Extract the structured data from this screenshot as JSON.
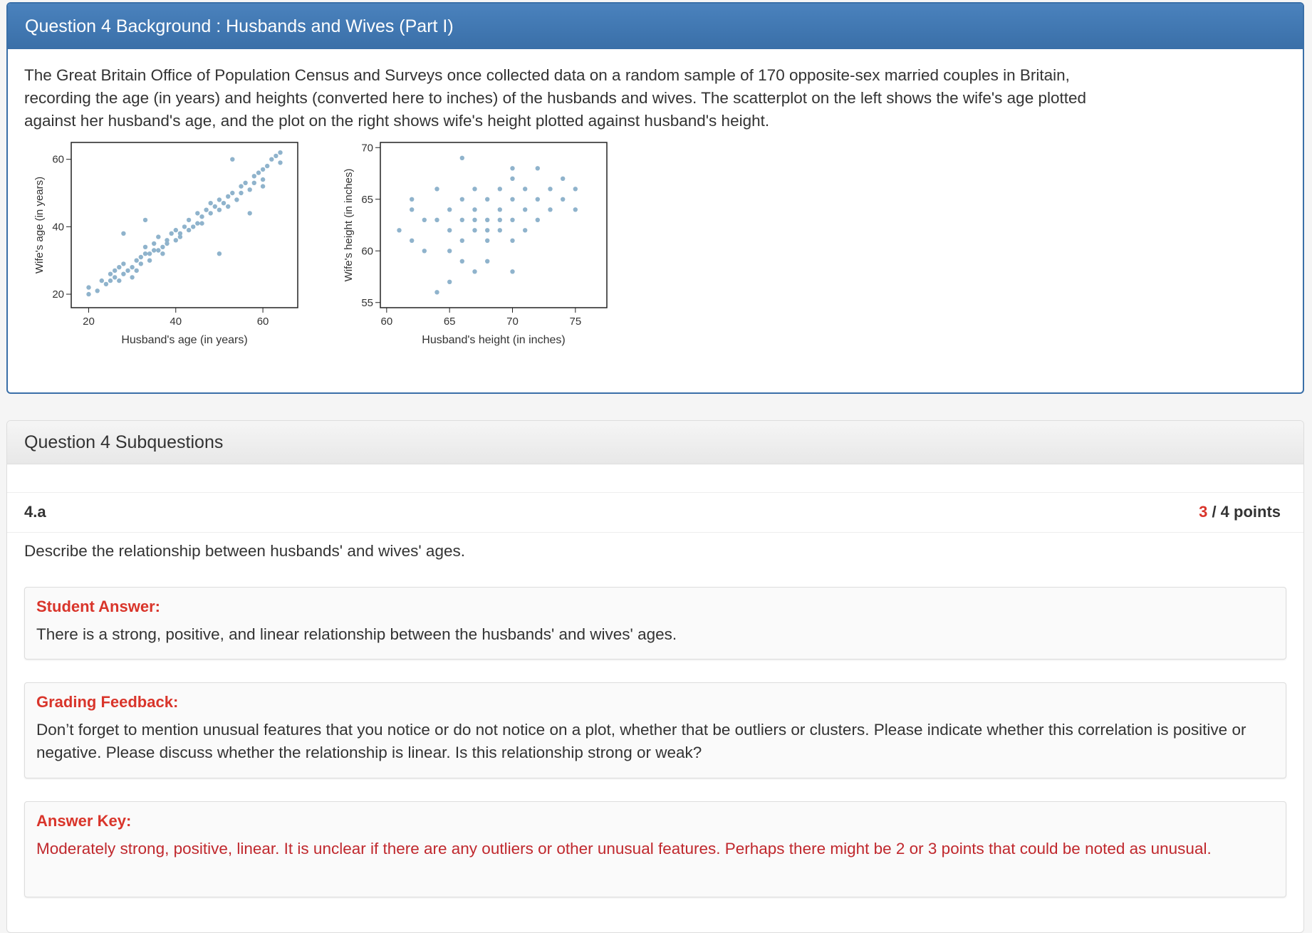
{
  "background": {
    "title": "Question 4 Background : Husbands and Wives (Part I)",
    "description": "The Great Britain Office of Population Census and Surveys once collected data on a random sample of 170 opposite-sex married couples in Britain, recording the age (in years) and heights (converted here to inches) of the husbands and wives. The scatterplot on the left shows the wife's age plotted against her husband's age, and the plot on the right shows wife's height plotted against husband's height."
  },
  "chart_data": [
    {
      "type": "scatter",
      "xlabel": "Husband's age (in years)",
      "ylabel": "Wife's age (in years)",
      "xlim": [
        16,
        68
      ],
      "ylim": [
        16,
        65
      ],
      "xticks": [
        "20",
        "40",
        "60"
      ],
      "yticks": [
        "20",
        "40",
        "60"
      ],
      "color": "#8fb3cc",
      "points": [
        [
          20,
          22
        ],
        [
          20,
          20
        ],
        [
          22,
          21
        ],
        [
          23,
          24
        ],
        [
          24,
          23
        ],
        [
          25,
          24
        ],
        [
          25,
          26
        ],
        [
          26,
          25
        ],
        [
          26,
          27
        ],
        [
          27,
          24
        ],
        [
          27,
          28
        ],
        [
          28,
          26
        ],
        [
          28,
          29
        ],
        [
          29,
          27
        ],
        [
          30,
          25
        ],
        [
          30,
          28
        ],
        [
          31,
          30
        ],
        [
          31,
          27
        ],
        [
          32,
          31
        ],
        [
          32,
          29
        ],
        [
          33,
          32
        ],
        [
          33,
          34
        ],
        [
          34,
          32
        ],
        [
          34,
          30
        ],
        [
          35,
          33
        ],
        [
          35,
          35
        ],
        [
          36,
          33
        ],
        [
          36,
          37
        ],
        [
          37,
          34
        ],
        [
          37,
          32
        ],
        [
          38,
          36
        ],
        [
          38,
          35
        ],
        [
          39,
          38
        ],
        [
          40,
          36
        ],
        [
          40,
          39
        ],
        [
          41,
          38
        ],
        [
          41,
          37
        ],
        [
          42,
          40
        ],
        [
          43,
          39
        ],
        [
          43,
          42
        ],
        [
          44,
          40
        ],
        [
          45,
          41
        ],
        [
          45,
          44
        ],
        [
          46,
          43
        ],
        [
          46,
          41
        ],
        [
          47,
          45
        ],
        [
          48,
          44
        ],
        [
          48,
          47
        ],
        [
          49,
          46
        ],
        [
          50,
          48
        ],
        [
          50,
          45
        ],
        [
          51,
          47
        ],
        [
          52,
          49
        ],
        [
          52,
          46
        ],
        [
          53,
          50
        ],
        [
          54,
          48
        ],
        [
          55,
          52
        ],
        [
          55,
          50
        ],
        [
          56,
          53
        ],
        [
          57,
          51
        ],
        [
          58,
          55
        ],
        [
          58,
          53
        ],
        [
          59,
          56
        ],
        [
          60,
          54
        ],
        [
          60,
          57
        ],
        [
          61,
          58
        ],
        [
          62,
          60
        ],
        [
          63,
          61
        ],
        [
          64,
          62
        ],
        [
          64,
          59
        ],
        [
          33,
          42
        ],
        [
          50,
          32
        ],
        [
          28,
          38
        ],
        [
          57,
          44
        ],
        [
          60,
          52
        ],
        [
          53,
          60
        ]
      ]
    },
    {
      "type": "scatter",
      "xlabel": "Husband's height (in inches)",
      "ylabel": "Wife's height (in inches)",
      "xlim": [
        59.5,
        77.5
      ],
      "ylim": [
        54.5,
        70.5
      ],
      "xticks": [
        "60",
        "65",
        "70",
        "75"
      ],
      "yticks": [
        "55",
        "60",
        "65",
        "70"
      ],
      "color": "#8fb3cc",
      "points": [
        [
          61,
          62
        ],
        [
          62,
          64
        ],
        [
          62,
          61
        ],
        [
          63,
          60
        ],
        [
          64,
          63
        ],
        [
          64,
          66
        ],
        [
          65,
          62
        ],
        [
          65,
          64
        ],
        [
          65,
          60
        ],
        [
          66,
          63
        ],
        [
          66,
          65
        ],
        [
          66,
          61
        ],
        [
          67,
          62
        ],
        [
          67,
          64
        ],
        [
          67,
          66
        ],
        [
          67,
          63
        ],
        [
          68,
          63
        ],
        [
          68,
          65
        ],
        [
          68,
          62
        ],
        [
          68,
          61
        ],
        [
          69,
          64
        ],
        [
          69,
          66
        ],
        [
          69,
          62
        ],
        [
          69,
          63
        ],
        [
          70,
          63
        ],
        [
          70,
          65
        ],
        [
          70,
          67
        ],
        [
          70,
          61
        ],
        [
          71,
          64
        ],
        [
          71,
          66
        ],
        [
          71,
          62
        ],
        [
          72,
          65
        ],
        [
          72,
          63
        ],
        [
          73,
          66
        ],
        [
          73,
          64
        ],
        [
          74,
          67
        ],
        [
          74,
          65
        ],
        [
          75,
          66
        ],
        [
          66,
          59
        ],
        [
          67,
          58
        ],
        [
          68,
          59
        ],
        [
          70,
          58
        ],
        [
          66,
          69
        ],
        [
          70,
          68
        ],
        [
          72,
          68
        ],
        [
          64,
          56
        ],
        [
          65,
          57
        ],
        [
          63,
          63
        ],
        [
          62,
          65
        ],
        [
          75,
          64
        ]
      ]
    }
  ],
  "subquestions": {
    "header": "Question 4 Subquestions",
    "id": "4.a",
    "points_earned": "3",
    "points_rest": "/ 4 points",
    "prompt": "Describe the relationship between husbands' and wives' ages.",
    "student_label": "Student Answer:",
    "student_answer": "There is a strong, positive, and linear relationship between the husbands' and wives' ages.",
    "feedback_label": "Grading Feedback:",
    "feedback": "Don’t forget to mention unusual features that you notice or do not notice on a plot, whether that be outliers or clusters. Please indicate whether this correlation is positive or negative. Please discuss whether the relationship is linear. Is this relationship strong or weak?",
    "key_label": "Answer Key:",
    "answer_key": "Moderately strong, positive, linear. It is unclear if there are any outliers or other unusual features. Perhaps there might be 2 or 3 points that could be noted as unusual."
  }
}
